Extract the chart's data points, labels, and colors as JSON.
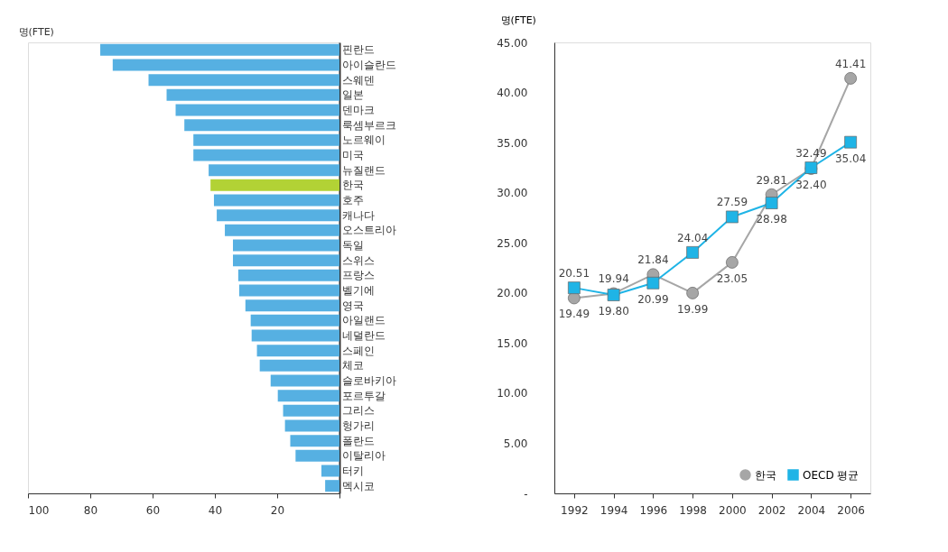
{
  "chart_data": [
    {
      "type": "bar",
      "orientation": "horizontal",
      "xlabel": "명(FTE)",
      "categories": [
        "핀란드",
        "아이슬란드",
        "스웨덴",
        "일본",
        "덴마크",
        "룩셈부르크",
        "노르웨이",
        "미국",
        "뉴질랜드",
        "한국",
        "호주",
        "캐나다",
        "오스트리아",
        "독일",
        "스위스",
        "프랑스",
        "벨기에",
        "영국",
        "아일랜드",
        "네덜란드",
        "스페인",
        "체코",
        "슬로바키아",
        "포르투갈",
        "그리스",
        "헝가리",
        "폴란드",
        "이탈리아",
        "터키",
        "멕시코"
      ],
      "values": [
        76.8,
        72.8,
        61.3,
        55.5,
        52.6,
        49.8,
        46.9,
        46.9,
        42.0,
        41.4,
        40.3,
        39.4,
        36.8,
        34.2,
        34.2,
        32.5,
        32.2,
        30.2,
        28.5,
        28.2,
        26.5,
        25.6,
        22.1,
        19.8,
        18.1,
        17.5,
        15.8,
        14.1,
        5.8,
        4.6
      ],
      "colors": [
        "#56b0e2",
        "#56b0e2",
        "#56b0e2",
        "#56b0e2",
        "#56b0e2",
        "#56b0e2",
        "#56b0e2",
        "#56b0e2",
        "#56b0e2",
        "#b2d235",
        "#56b0e2",
        "#56b0e2",
        "#56b0e2",
        "#56b0e2",
        "#56b0e2",
        "#56b0e2",
        "#56b0e2",
        "#56b0e2",
        "#56b0e2",
        "#56b0e2",
        "#56b0e2",
        "#56b0e2",
        "#56b0e2",
        "#56b0e2",
        "#56b0e2",
        "#56b0e2",
        "#56b0e2",
        "#56b0e2",
        "#56b0e2",
        "#56b0e2"
      ],
      "xlim": [
        100,
        0
      ],
      "xticks": [
        100,
        80,
        60,
        40,
        20,
        {
          "value": 0,
          "label": null
        }
      ],
      "grid": false,
      "legend": false
    },
    {
      "type": "line",
      "ylabel": "명(FTE)",
      "categories": [
        "1992",
        "1994",
        "1996",
        "1998",
        "2000",
        "2002",
        "2004",
        "2006"
      ],
      "series": [
        {
          "name": "한국",
          "color": "#a6a6a6",
          "marker": "circle",
          "values": [
            19.49,
            19.94,
            21.84,
            19.99,
            23.05,
            29.81,
            32.4,
            41.41
          ],
          "value_labels": [
            "19.49",
            "19.94",
            "21.84",
            "19.99",
            "23.05",
            "29.81",
            "32.40",
            "41.41"
          ]
        },
        {
          "name": "OECD 평균",
          "color": "#1fb4e6",
          "marker": "square",
          "values": [
            20.51,
            19.8,
            20.99,
            24.04,
            27.59,
            28.98,
            32.49,
            35.04
          ],
          "value_labels": [
            "20.51",
            "19.80",
            "20.99",
            "24.04",
            "27.59",
            "28.98",
            "32.49",
            "35.04"
          ]
        }
      ],
      "ylim": [
        0,
        45
      ],
      "yticks": [
        {
          "value": 0,
          "label": "-"
        },
        {
          "value": 5,
          "label": "5.00"
        },
        {
          "value": 10,
          "label": "10.00"
        },
        {
          "value": 15,
          "label": "15.00"
        },
        {
          "value": 20,
          "label": "20.00"
        },
        {
          "value": 25,
          "label": "25.00"
        },
        {
          "value": 30,
          "label": "30.00"
        },
        {
          "value": 35,
          "label": "35.00"
        },
        {
          "value": 40,
          "label": "40.00"
        },
        {
          "value": 45,
          "label": "45.00"
        }
      ],
      "grid": false,
      "legend": "bottom right"
    }
  ]
}
